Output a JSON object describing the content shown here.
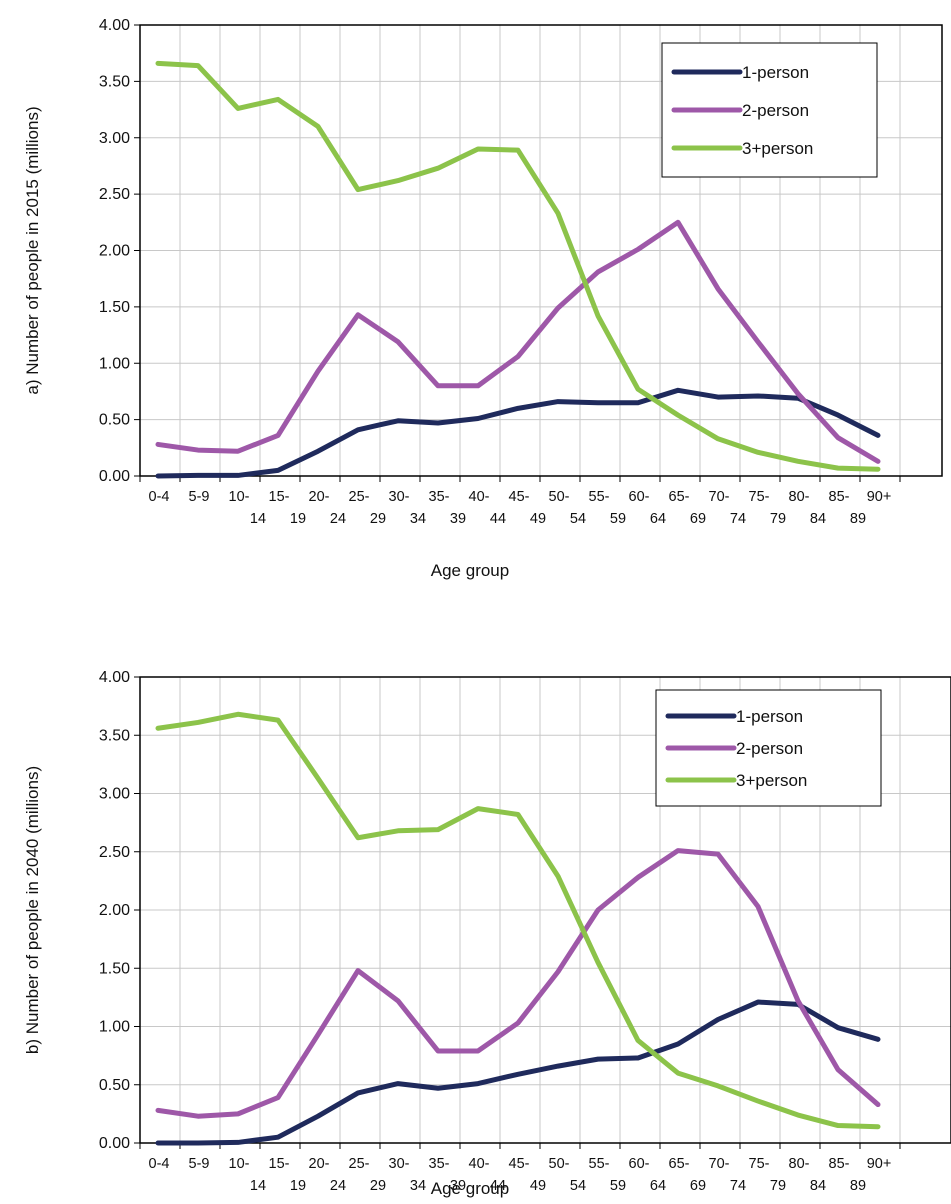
{
  "chart_data": [
    {
      "type": "line",
      "ylabel": "a) Number of  people in  2015 (millions)",
      "xlabel": "Age group",
      "ylim": [
        0,
        4
      ],
      "yticks": [
        "0.00",
        "0.50",
        "1.00",
        "1.50",
        "2.00",
        "2.50",
        "3.00",
        "3.50",
        "4.00"
      ],
      "grid": true,
      "legend_position": "top-right",
      "categories": [
        [
          "0-4",
          ""
        ],
        [
          "5-9",
          ""
        ],
        [
          "10-",
          "14"
        ],
        [
          "15-",
          "19"
        ],
        [
          "20-",
          "24"
        ],
        [
          "25-",
          "29"
        ],
        [
          "30-",
          "34"
        ],
        [
          "35-",
          "39"
        ],
        [
          "40-",
          "44"
        ],
        [
          "45-",
          "49"
        ],
        [
          "50-",
          "54"
        ],
        [
          "55-",
          "59"
        ],
        [
          "60-",
          "64"
        ],
        [
          "65-",
          "69"
        ],
        [
          "70-",
          "74"
        ],
        [
          "75-",
          "79"
        ],
        [
          "80-",
          "84"
        ],
        [
          "85-",
          "89"
        ],
        [
          "90+",
          ""
        ]
      ],
      "series": [
        {
          "name": "1-person",
          "color": "#1f2a5c",
          "values": [
            0.0,
            0.005,
            0.005,
            0.05,
            0.22,
            0.41,
            0.49,
            0.47,
            0.51,
            0.6,
            0.66,
            0.65,
            0.65,
            0.76,
            0.7,
            0.71,
            0.69,
            0.54,
            0.36
          ]
        },
        {
          "name": "2-person",
          "color": "#9e58a8",
          "values": [
            0.28,
            0.23,
            0.22,
            0.36,
            0.93,
            1.43,
            1.19,
            0.8,
            0.8,
            1.06,
            1.49,
            1.81,
            2.01,
            2.25,
            1.66,
            1.19,
            0.73,
            0.34,
            0.13
          ]
        },
        {
          "name": "3+person",
          "color": "#8cc34a",
          "values": [
            3.66,
            3.64,
            3.26,
            3.34,
            3.1,
            2.54,
            2.62,
            2.73,
            2.9,
            2.89,
            2.33,
            1.42,
            0.77,
            0.54,
            0.33,
            0.21,
            0.13,
            0.07,
            0.06
          ]
        }
      ]
    },
    {
      "type": "line",
      "ylabel": "b) Number of people in 2040 (millions)",
      "xlabel": "Age group",
      "ylim": [
        0,
        4
      ],
      "yticks": [
        "0.00",
        "0.50",
        "1.00",
        "1.50",
        "2.00",
        "2.50",
        "3.00",
        "3.50",
        "4.00"
      ],
      "grid": true,
      "legend_position": "top-right",
      "categories": [
        [
          "0-4",
          ""
        ],
        [
          "5-9",
          ""
        ],
        [
          "10-",
          "14"
        ],
        [
          "15-",
          "19"
        ],
        [
          "20-",
          "24"
        ],
        [
          "25-",
          "29"
        ],
        [
          "30-",
          "34"
        ],
        [
          "35-",
          "39"
        ],
        [
          "40-",
          "44"
        ],
        [
          "45-",
          "49"
        ],
        [
          "50-",
          "54"
        ],
        [
          "55-",
          "59"
        ],
        [
          "60-",
          "64"
        ],
        [
          "65-",
          "69"
        ],
        [
          "70-",
          "74"
        ],
        [
          "75-",
          "79"
        ],
        [
          "80-",
          "84"
        ],
        [
          "85-",
          "89"
        ],
        [
          "90+",
          ""
        ]
      ],
      "series": [
        {
          "name": "1-person",
          "color": "#1f2a5c",
          "values": [
            0.0,
            0.0,
            0.005,
            0.05,
            0.23,
            0.43,
            0.51,
            0.47,
            0.51,
            0.59,
            0.66,
            0.72,
            0.73,
            0.85,
            1.06,
            1.21,
            1.19,
            0.99,
            0.89
          ]
        },
        {
          "name": "2-person",
          "color": "#9e58a8",
          "values": [
            0.28,
            0.23,
            0.25,
            0.39,
            0.93,
            1.48,
            1.22,
            0.79,
            0.79,
            1.03,
            1.47,
            2.0,
            2.28,
            2.51,
            2.48,
            2.03,
            1.22,
            0.63,
            0.33
          ]
        },
        {
          "name": "3+person",
          "color": "#8cc34a",
          "values": [
            3.56,
            3.61,
            3.68,
            3.63,
            3.13,
            2.62,
            2.68,
            2.69,
            2.87,
            2.82,
            2.29,
            1.55,
            0.88,
            0.6,
            0.49,
            0.36,
            0.24,
            0.15,
            0.14
          ]
        }
      ]
    }
  ]
}
